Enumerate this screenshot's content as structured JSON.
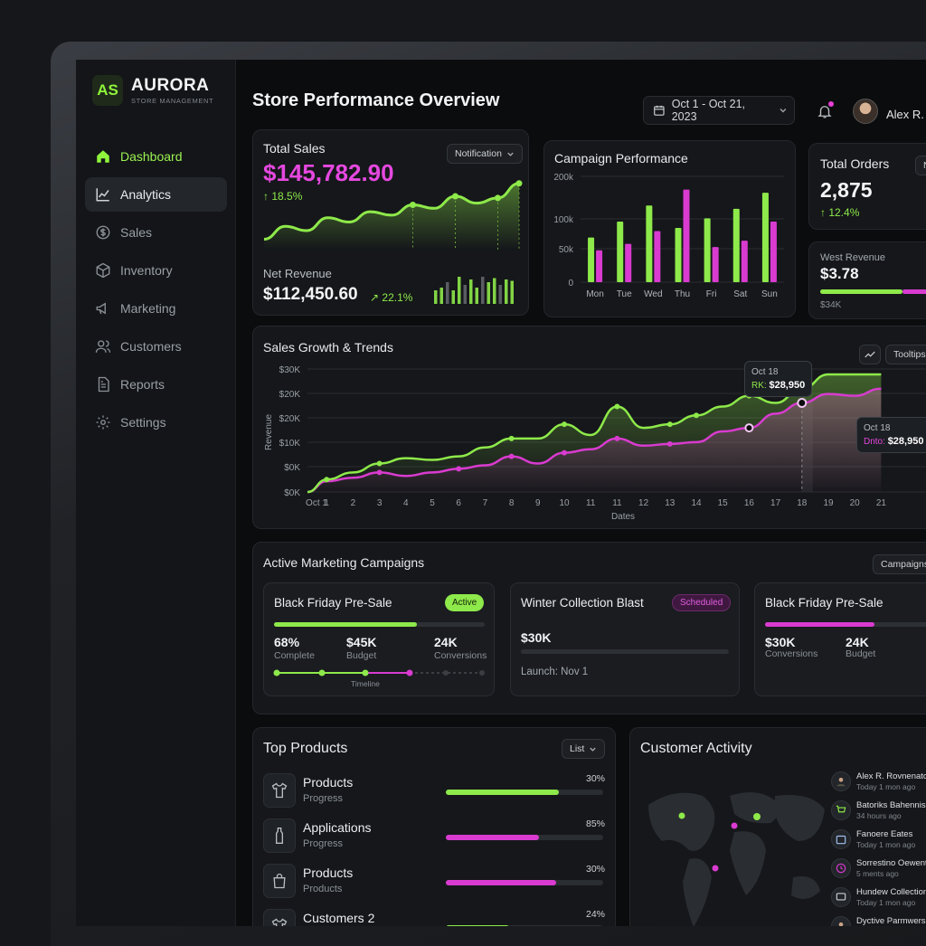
{
  "app": {
    "logo_mark": "AS",
    "name": "AURORA",
    "subtitle": "STORE MANAGEMENT"
  },
  "sidebar": {
    "items": [
      {
        "label": "Dashboard",
        "icon": "home-icon"
      },
      {
        "label": "Analytics",
        "icon": "chart-line-icon"
      },
      {
        "label": "Sales",
        "icon": "dollar-icon"
      },
      {
        "label": "Inventory",
        "icon": "box-icon"
      },
      {
        "label": "Marketing",
        "icon": "megaphone-icon"
      },
      {
        "label": "Customers",
        "icon": "users-icon"
      },
      {
        "label": "Reports",
        "icon": "document-icon"
      },
      {
        "label": "Settings",
        "icon": "gear-icon"
      }
    ]
  },
  "header": {
    "title": "Store Performance Overview",
    "date_range": "Oct 1 - Oct 21, 2023",
    "user_name": "Alex R."
  },
  "total_sales": {
    "title": "Total Sales",
    "dropdown": "Notification",
    "value": "$145,782.90",
    "change": "↑ 18.5%",
    "net_label": "Net Revenue",
    "net_value": "$112,450.60",
    "net_change": "↗ 22.1%",
    "trend": [
      30,
      45,
      40,
      55,
      50,
      62,
      58,
      70,
      66,
      80,
      72,
      78,
      95
    ],
    "mini_bars": [
      0.5,
      0.6,
      0.8,
      0.5,
      1.0,
      0.7,
      0.9,
      0.6,
      1.0,
      0.8,
      0.95,
      0.7,
      0.9,
      0.85
    ]
  },
  "campaign_performance": {
    "title": "Campaign Performance",
    "chart_data": {
      "type": "bar",
      "categories": [
        "Mon",
        "Tue",
        "Wed",
        "Thu",
        "Fri",
        "Sat",
        "Sun"
      ],
      "series": [
        {
          "values": [
            70,
            95,
            120,
            85,
            100,
            115,
            140
          ]
        },
        {
          "values": [
            50,
            60,
            80,
            145,
            55,
            65,
            95
          ]
        }
      ],
      "y_ticks": [
        "200k",
        "100k",
        "50k",
        "0"
      ],
      "ylim": [
        0,
        170
      ]
    }
  },
  "total_orders": {
    "title": "Total Orders",
    "value": "2,875",
    "change": "↑ 12.4%",
    "dropdown": "N",
    "west_label": "West Revenue",
    "west_value": "$3.78",
    "west_sub": "$34K"
  },
  "sales_growth": {
    "title": "Sales Growth & Trends",
    "button": "Tooltips",
    "tooltip1": {
      "date": "Oct 18",
      "label": "RK:",
      "value": "$28,950"
    },
    "tooltip2": {
      "date": "Oct 18",
      "label": "Dnto:",
      "value": "$28,950"
    },
    "chart_data": {
      "type": "area",
      "x": [
        "Oct 1",
        "1",
        "2",
        "3",
        "4",
        "5",
        "6",
        "7",
        "8",
        "9",
        "10",
        "11",
        "11",
        "12",
        "13",
        "14",
        "15",
        "16",
        "17",
        "18",
        "19",
        "20",
        "21"
      ],
      "xlabel": "Dates",
      "ylabel": "Revenue",
      "y_ticks": [
        "$30K",
        "$20K",
        "$20K",
        "$10K",
        "$0K",
        "$0K"
      ],
      "series": [
        {
          "values": [
            0,
            3.5,
            5.5,
            8,
            9.5,
            9,
            10,
            12.5,
            15,
            15,
            19,
            16,
            24,
            18,
            19,
            21.5,
            24,
            27,
            25,
            29,
            33,
            33,
            33
          ]
        },
        {
          "values": [
            0,
            3,
            4,
            5.5,
            4.5,
            5.5,
            6.5,
            7.5,
            10,
            8,
            11,
            12,
            15,
            13,
            13.5,
            14,
            17,
            18,
            22,
            25,
            27.5,
            27,
            29
          ]
        }
      ]
    }
  },
  "campaigns": {
    "title": "Active Marketing Campaigns",
    "button": "Campaigns",
    "items": [
      {
        "title": "Black Friday Pre-Sale",
        "badge": "Active",
        "progress": 0.68,
        "stats": [
          {
            "value": "68%",
            "label": "Complete"
          },
          {
            "value": "$45K",
            "label": "Budget"
          },
          {
            "value": "24K",
            "label": "Conversions"
          }
        ],
        "timeline": "Timeline"
      },
      {
        "title": "Winter Collection Blast",
        "badge": "Scheduled",
        "value": "$30K",
        "launch": "Launch: Nov 1"
      },
      {
        "title": "Black Friday Pre-Sale",
        "progress": 0.55,
        "stats": [
          {
            "value": "$30K",
            "label": "Conversions"
          },
          {
            "value": "24K",
            "label": "Budget"
          }
        ]
      }
    ]
  },
  "top_products": {
    "title": "Top Products",
    "dropdown": "List",
    "items": [
      {
        "name": "Products",
        "sub": "Progress",
        "pct": "30%",
        "fill": 0.72,
        "color": "#8ee94a",
        "icon": "shirt-icon"
      },
      {
        "name": "Applications",
        "sub": "Progress",
        "pct": "85%",
        "fill": 0.59,
        "color": "#d93bd0",
        "icon": "bottle-icon"
      },
      {
        "name": "Products",
        "sub": "Products",
        "pct": "30%",
        "fill": 0.7,
        "color": "#d93bd0",
        "icon": "bag-icon"
      },
      {
        "name": "Customers 2",
        "sub": "",
        "pct": "24%",
        "fill": 0.4,
        "color": "#8ee94a",
        "icon": "tshirt-icon"
      }
    ]
  },
  "customer_activity": {
    "title": "Customer Activity",
    "items": [
      {
        "name": "Alex R. Rovnenator",
        "time": "Today 1 mon ago",
        "icon": "avatar-icon"
      },
      {
        "name": "Batoriks Bahennis",
        "time": "34 hours ago",
        "icon": "cart-icon"
      },
      {
        "name": "Fanoere Eates",
        "time": "Today 1 mon ago",
        "icon": "calendar-icon"
      },
      {
        "name": "Sorrestino Oewent",
        "time": "5 ments ago",
        "icon": "clock-icon"
      },
      {
        "name": "Hundew Collection",
        "time": "Today 1 mon ago",
        "icon": "message-icon"
      },
      {
        "name": "Dyctive Parmwers",
        "time": "",
        "icon": "avatar-icon"
      }
    ]
  },
  "colors": {
    "accent_green": "#8ee94a",
    "accent_magenta": "#d93bd0",
    "background": "#0b0c0e"
  }
}
